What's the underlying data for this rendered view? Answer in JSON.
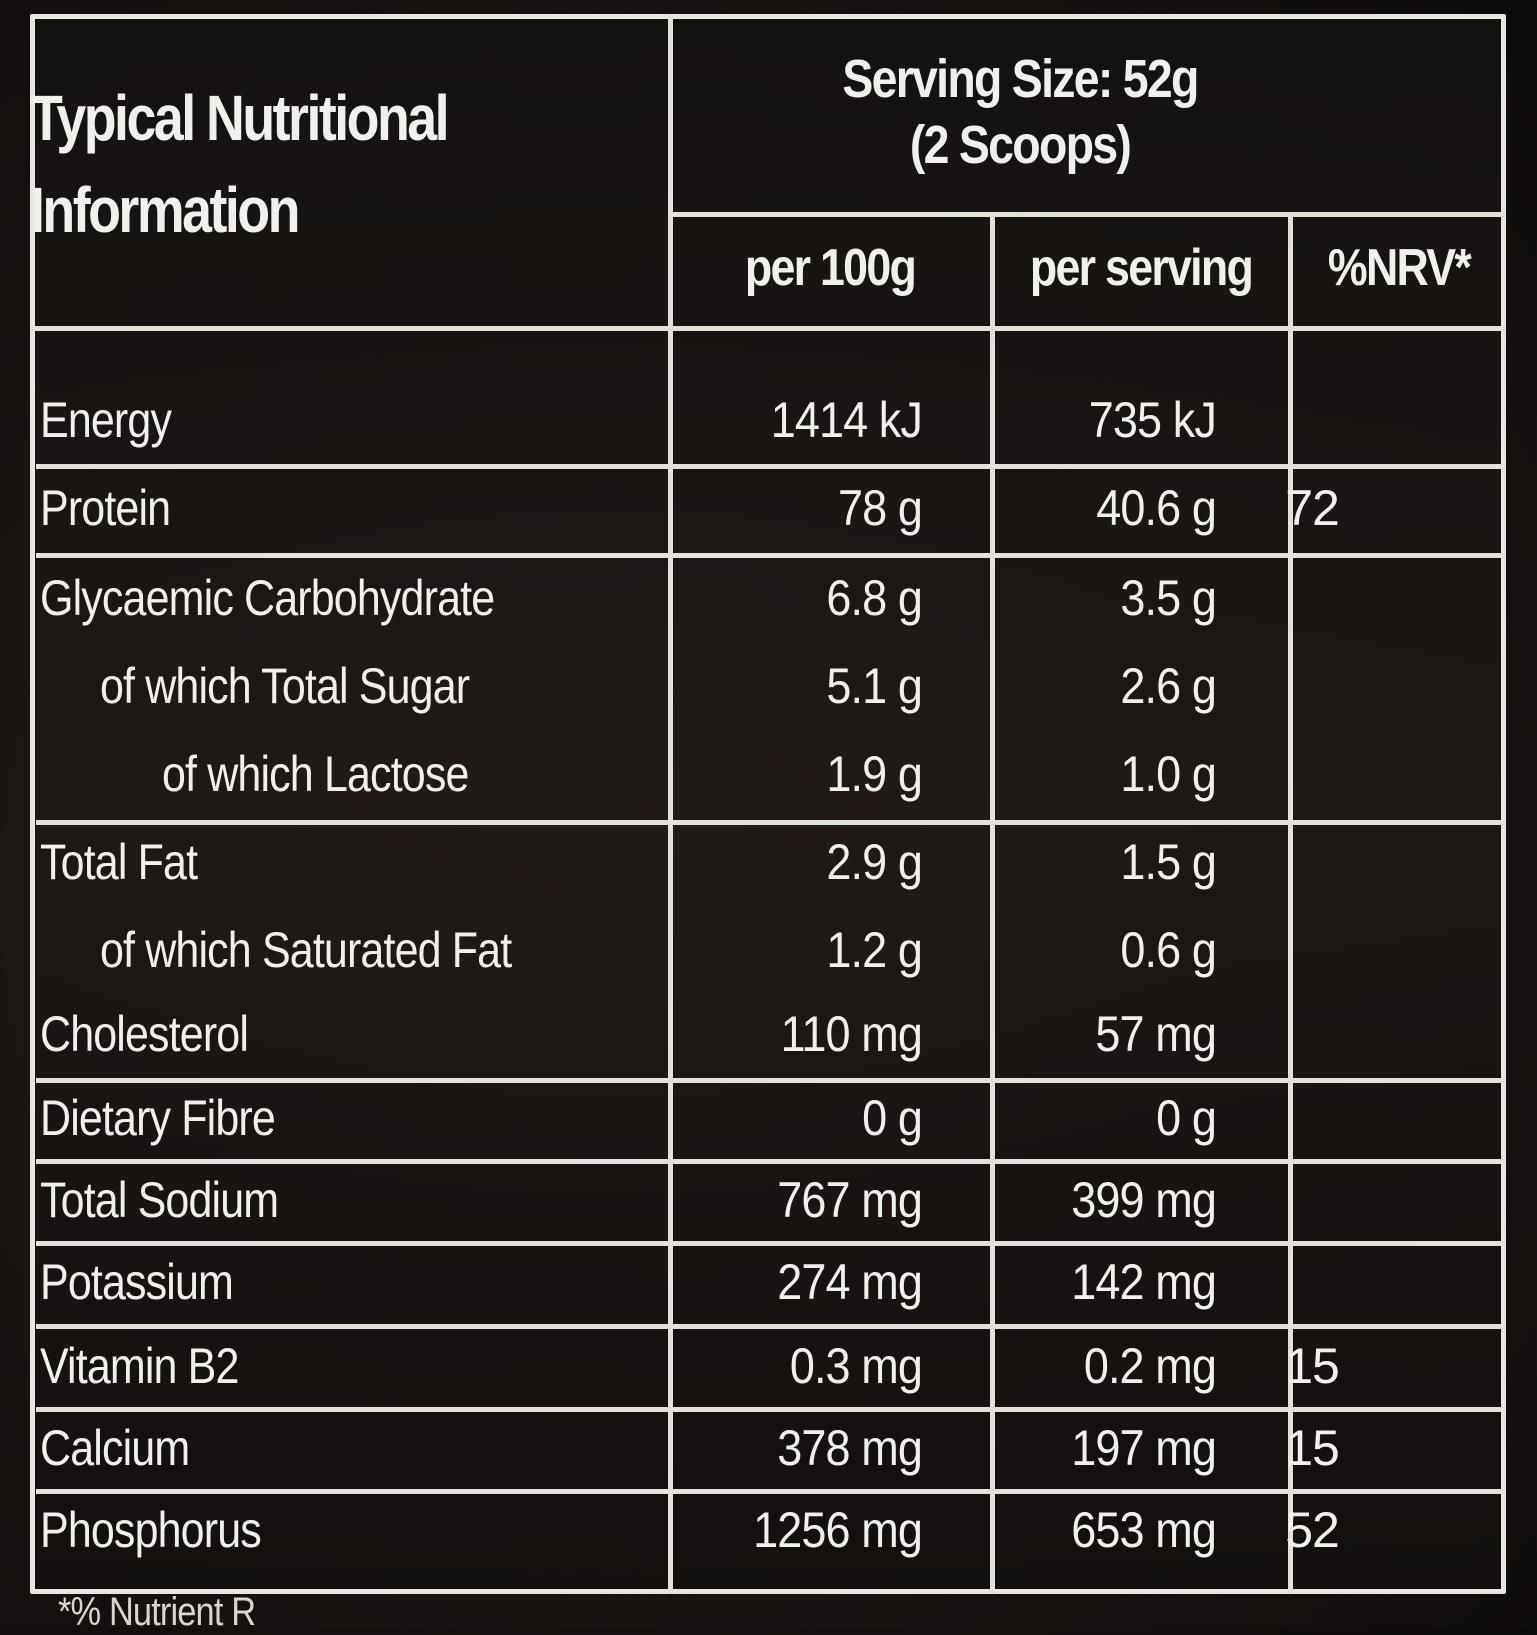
{
  "header": {
    "title": "Typical Nutritional\nInformation",
    "serving_line1": "Serving Size: 52g",
    "serving_line2": "(2 Scoops)"
  },
  "columns": {
    "per100": "per 100g",
    "perServing": "per serving",
    "nrv": "%NRV*"
  },
  "rows": [
    {
      "label": "Energy",
      "per100": "1414 kJ",
      "serving": "735 kJ",
      "nrv": ""
    },
    {
      "label": "Protein",
      "per100": "78 g",
      "serving": "40.6 g",
      "nrv": "72"
    },
    {
      "label": "Glycaemic Carbohydrate",
      "per100": "6.8 g",
      "serving": "3.5 g",
      "nrv": ""
    },
    {
      "label": "of which Total Sugar",
      "per100": "5.1 g",
      "serving": "2.6 g",
      "nrv": ""
    },
    {
      "label": "of which Lactose",
      "per100": "1.9 g",
      "serving": "1.0 g",
      "nrv": ""
    },
    {
      "label": "Total Fat",
      "per100": "2.9 g",
      "serving": "1.5 g",
      "nrv": ""
    },
    {
      "label": "of which Saturated Fat",
      "per100": "1.2 g",
      "serving": "0.6 g",
      "nrv": ""
    },
    {
      "label": "Cholesterol",
      "per100": "110 mg",
      "serving": "57 mg",
      "nrv": ""
    },
    {
      "label": "Dietary Fibre",
      "per100": "0 g",
      "serving": "0 g",
      "nrv": ""
    },
    {
      "label": "Total Sodium",
      "per100": "767 mg",
      "serving": "399 mg",
      "nrv": ""
    },
    {
      "label": "Potassium",
      "per100": "274 mg",
      "serving": "142 mg",
      "nrv": ""
    },
    {
      "label": "Vitamin B2",
      "per100": "0.3 mg",
      "serving": "0.2 mg",
      "nrv": "15"
    },
    {
      "label": "Calcium",
      "per100": "378 mg",
      "serving": "197 mg",
      "nrv": "15"
    },
    {
      "label": "Phosphorus",
      "per100": "1256 mg",
      "serving": "653 mg",
      "nrv": "52"
    }
  ],
  "footnote": "*% Nutrient R"
}
